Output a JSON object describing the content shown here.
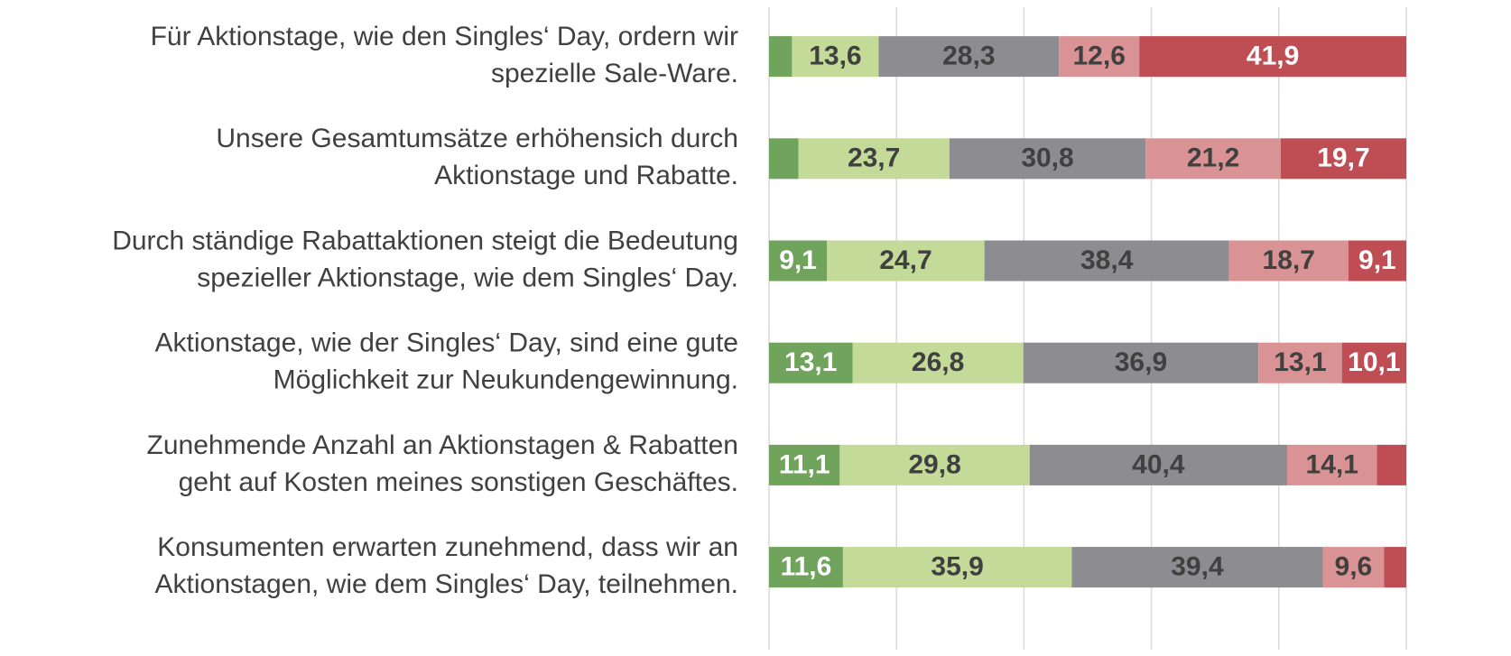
{
  "chart_data": {
    "type": "stacked-barh",
    "categories": [
      [
        "Für Aktionstage, wie den Singles‘ Day, ordern wir",
        "spezielle Sale-Ware."
      ],
      [
        "Unsere Gesamtumsätze erhöhensich durch",
        "Aktionstage und Rabatte."
      ],
      [
        "Durch ständige Rabattaktionen steigt die Bedeutung",
        "spezieller Aktionstage, wie dem Singles‘ Day."
      ],
      [
        "Aktionstage, wie der Singles‘ Day, sind eine gute",
        "Möglichkeit zur Neukundengewinnung."
      ],
      [
        "Zunehmende Anzahl an Aktionstagen & Rabatten",
        "geht auf Kosten meines sonstigen Geschäftes."
      ],
      [
        "Konsumenten erwarten zunehmend,  dass wir an",
        "Aktionstagen, wie dem Singles‘ Day, teilnehmen."
      ]
    ],
    "series": [
      {
        "color": "#70a35b",
        "label_color": "#ffffff",
        "values": [
          3.6,
          4.6,
          9.1,
          13.1,
          11.1,
          11.6
        ],
        "value_labels": [
          null,
          null,
          "9,1",
          "13,1",
          "11,1",
          "11,6"
        ]
      },
      {
        "color": "#c3da98",
        "label_color": "#404040",
        "values": [
          13.6,
          23.7,
          24.7,
          26.8,
          29.8,
          35.9
        ],
        "value_labels": [
          "13,6",
          "23,7",
          "24,7",
          "26,8",
          "29,8",
          "35,9"
        ]
      },
      {
        "color": "#8d8d91",
        "label_color": "#404040",
        "values": [
          28.3,
          30.8,
          38.4,
          36.9,
          40.4,
          39.4
        ],
        "value_labels": [
          "28,3",
          "30,8",
          "38,4",
          "36,9",
          "40,4",
          "39,4"
        ]
      },
      {
        "color": "#d99394",
        "label_color": "#404040",
        "values": [
          12.6,
          21.2,
          18.7,
          13.1,
          14.1,
          9.6
        ],
        "value_labels": [
          "12,6",
          "21,2",
          "18,7",
          "13,1",
          "14,1",
          "9,6"
        ]
      },
      {
        "color": "#bf4e54",
        "label_color": "#ffffff",
        "values": [
          41.9,
          19.7,
          9.1,
          10.1,
          4.6,
          3.5
        ],
        "value_labels": [
          "41,9",
          "19,7",
          "9,1",
          "10,1",
          null,
          null
        ]
      }
    ],
    "xlim": [
      0,
      100
    ],
    "xticks": [
      0,
      20,
      40,
      60,
      80,
      100
    ],
    "grid": true
  }
}
